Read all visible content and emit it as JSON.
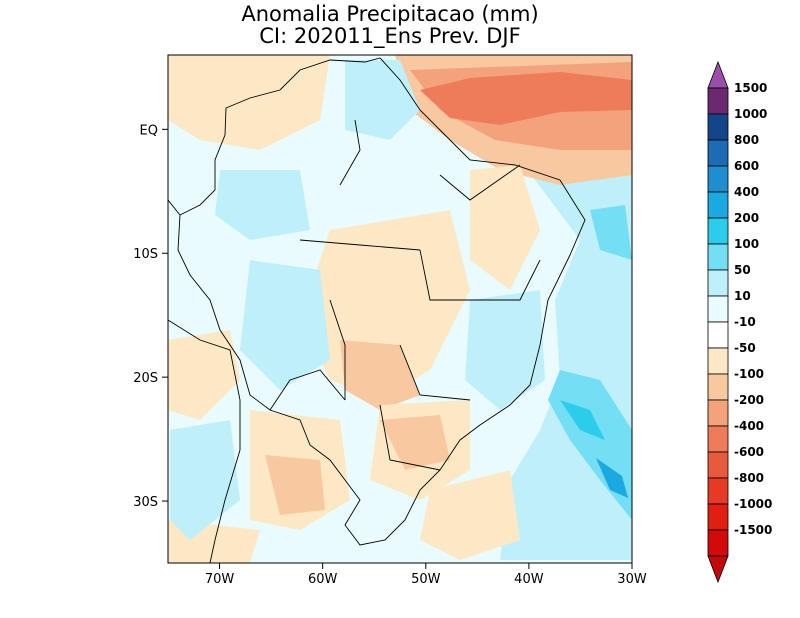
{
  "title": {
    "line1": "Anomalia Precipitacao (mm)",
    "line2": "CI: 202011_Ens Prev. DJF"
  },
  "map": {
    "region": "Brazil / South America",
    "lon_range": [
      -75,
      -30
    ],
    "lat_range": [
      -35,
      6
    ],
    "x_ticks": [
      {
        "lon": -70,
        "label": "70W"
      },
      {
        "lon": -60,
        "label": "60W"
      },
      {
        "lon": -50,
        "label": "50W"
      },
      {
        "lon": -40,
        "label": "40W"
      },
      {
        "lon": -30,
        "label": "30W"
      }
    ],
    "y_ticks": [
      {
        "lat": 0,
        "label": "EQ"
      },
      {
        "lat": -10,
        "label": "10S"
      },
      {
        "lat": -20,
        "label": "20S"
      },
      {
        "lat": -30,
        "label": "30S"
      }
    ]
  },
  "colorbar": {
    "labels": [
      "1500",
      "1000",
      "800",
      "600",
      "400",
      "200",
      "100",
      "50",
      "10",
      "-10",
      "-50",
      "-100",
      "-200",
      "-400",
      "-600",
      "-800",
      "-1000",
      "-1500"
    ],
    "colors": [
      "#6b2a6f",
      "#14448a",
      "#1c6bb4",
      "#1f8ed0",
      "#1aa9e0",
      "#2ccdeb",
      "#74def4",
      "#bff0fa",
      "#e9fbfd",
      "#ffffff",
      "#fde8c6",
      "#f8c8a0",
      "#f3a27b",
      "#ee7b5a",
      "#e85a3e",
      "#e63a26",
      "#e01e12",
      "#d10b0b"
    ],
    "top_cap_color": "#9b4fa8",
    "bottom_cap_color": "#c20a0a"
  }
}
